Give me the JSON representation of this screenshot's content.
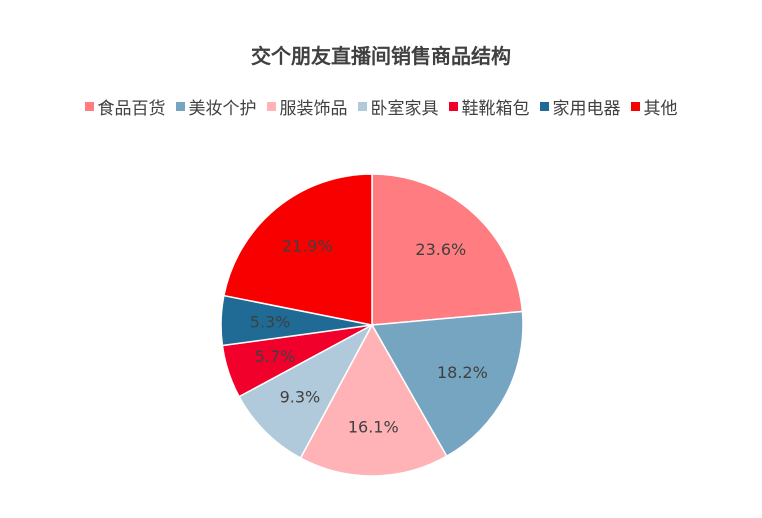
{
  "chart_data": {
    "type": "pie",
    "title": "交个朋友直播间销售商品结构",
    "legend_position": "top",
    "categories": [
      "食品百货",
      "美妆个护",
      "服装饰品",
      "卧室家具",
      "鞋靴箱包",
      "家用电器",
      "其他"
    ],
    "values": [
      23.6,
      18.2,
      16.1,
      9.3,
      5.7,
      5.3,
      21.9
    ],
    "labels": [
      "23.6%",
      "18.2%",
      "16.1%",
      "9.3%",
      "5.7%",
      "5.3%",
      "21.9%"
    ],
    "colors": [
      "#FF7C80",
      "#76A5C1",
      "#FFB3B6",
      "#B1CADB",
      "#F0002A",
      "#1F6B95",
      "#F90000"
    ]
  }
}
